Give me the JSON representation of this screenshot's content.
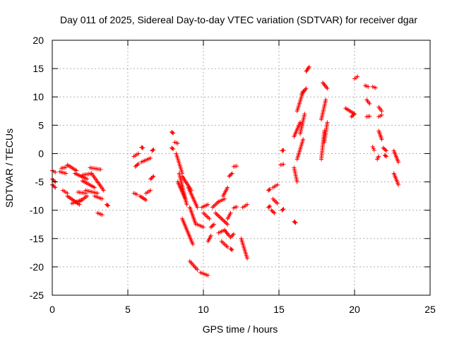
{
  "chart_data": {
    "type": "scatter",
    "title": "Day 011 of 2025, Sidereal Day-to-day VTEC variation (SDTVAR) for receiver dgar",
    "xlabel": "GPS time / hours",
    "ylabel": "SDTVAR / TECUs",
    "xlim": [
      0,
      25
    ],
    "ylim": [
      -25,
      20
    ],
    "xticks": [
      0,
      5,
      10,
      15,
      20,
      25
    ],
    "yticks": [
      -25,
      -20,
      -15,
      -10,
      -5,
      0,
      5,
      10,
      15,
      20
    ],
    "grid": true,
    "marker": "+",
    "color": "#ff0000",
    "segments": [
      {
        "x": [
          0.0,
          0.2
        ],
        "y": [
          -3.0,
          -3.3
        ]
      },
      {
        "x": [
          0.0,
          0.2
        ],
        "y": [
          -4.5,
          -5.0
        ]
      },
      {
        "x": [
          0.0,
          0.2
        ],
        "y": [
          -5.5,
          -6.0
        ]
      },
      {
        "x": [
          0.5,
          0.9
        ],
        "y": [
          -3.2,
          -3.5
        ]
      },
      {
        "x": [
          0.7,
          1.0
        ],
        "y": [
          -6.5,
          -7.0
        ]
      },
      {
        "x": [
          0.6,
          0.9
        ],
        "y": [
          -2.6,
          -2.4
        ]
      },
      {
        "x": [
          1.0,
          1.6
        ],
        "y": [
          -2.0,
          -3.0
        ]
      },
      {
        "x": [
          1.0,
          1.8
        ],
        "y": [
          -7.5,
          -9.0
        ]
      },
      {
        "x": [
          1.3,
          1.9
        ],
        "y": [
          -8.8,
          -8.2
        ]
      },
      {
        "x": [
          1.5,
          2.3
        ],
        "y": [
          -3.5,
          -4.5
        ]
      },
      {
        "x": [
          1.7,
          2.2
        ],
        "y": [
          -6.8,
          -7.0
        ]
      },
      {
        "x": [
          1.8,
          2.3
        ],
        "y": [
          -8.5,
          -7.5
        ]
      },
      {
        "x": [
          2.0,
          2.6
        ],
        "y": [
          -3.8,
          -3.5
        ]
      },
      {
        "x": [
          2.0,
          2.8
        ],
        "y": [
          -4.8,
          -6.0
        ]
      },
      {
        "x": [
          2.2,
          3.0
        ],
        "y": [
          -6.5,
          -7.0
        ]
      },
      {
        "x": [
          2.5,
          3.2
        ],
        "y": [
          -2.5,
          -2.8
        ]
      },
      {
        "x": [
          2.6,
          3.4
        ],
        "y": [
          -3.5,
          -6.5
        ]
      },
      {
        "x": [
          2.8,
          3.3
        ],
        "y": [
          -7.5,
          -8.0
        ]
      },
      {
        "x": [
          3.0,
          3.3
        ],
        "y": [
          -10.5,
          -10.8
        ]
      },
      {
        "x": [
          3.6,
          3.7
        ],
        "y": [
          -9.0,
          -9.2
        ]
      },
      {
        "x": [
          5.4,
          5.7
        ],
        "y": [
          -0.5,
          0.0
        ]
      },
      {
        "x": [
          5.4,
          5.6
        ],
        "y": [
          -7.0,
          -7.2
        ]
      },
      {
        "x": [
          5.5,
          5.7
        ],
        "y": [
          -2.3,
          -1.8
        ]
      },
      {
        "x": [
          5.8,
          6.2
        ],
        "y": [
          -7.5,
          -8.2
        ]
      },
      {
        "x": [
          5.9,
          6.5
        ],
        "y": [
          -1.5,
          -0.8
        ]
      },
      {
        "x": [
          5.9,
          6.0
        ],
        "y": [
          1.1,
          1.0
        ]
      },
      {
        "x": [
          6.2,
          6.5
        ],
        "y": [
          -7.0,
          -6.5
        ]
      },
      {
        "x": [
          6.5,
          6.7
        ],
        "y": [
          -4.5,
          -4.0
        ]
      },
      {
        "x": [
          6.6,
          6.7
        ],
        "y": [
          0.5,
          0.7
        ]
      },
      {
        "x": [
          7.9,
          8.0
        ],
        "y": [
          3.8,
          3.6
        ]
      },
      {
        "x": [
          7.9,
          8.0
        ],
        "y": [
          1.0,
          0.8
        ]
      },
      {
        "x": [
          8.1,
          8.3
        ],
        "y": [
          2.0,
          1.8
        ]
      },
      {
        "x": [
          8.2,
          8.6
        ],
        "y": [
          0.0,
          -3.5
        ]
      },
      {
        "x": [
          8.3,
          8.8
        ],
        "y": [
          -5.0,
          -8.0
        ]
      },
      {
        "x": [
          8.4,
          8.9
        ],
        "y": [
          -3.5,
          -9.0
        ]
      },
      {
        "x": [
          8.6,
          9.2
        ],
        "y": [
          -4.0,
          -6.5
        ]
      },
      {
        "x": [
          8.6,
          9.3
        ],
        "y": [
          -11.5,
          -16.0
        ]
      },
      {
        "x": [
          9.0,
          9.6
        ],
        "y": [
          -6.0,
          -9.5
        ]
      },
      {
        "x": [
          9.1,
          9.5
        ],
        "y": [
          -9.5,
          -12.5
        ]
      },
      {
        "x": [
          9.1,
          9.6
        ],
        "y": [
          -19.0,
          -20.5
        ]
      },
      {
        "x": [
          9.6,
          10.0
        ],
        "y": [
          -12.5,
          -13.0
        ]
      },
      {
        "x": [
          9.8,
          10.3
        ],
        "y": [
          -21.0,
          -21.5
        ]
      },
      {
        "x": [
          9.9,
          10.3
        ],
        "y": [
          -9.5,
          -9.0
        ]
      },
      {
        "x": [
          10.0,
          10.4
        ],
        "y": [
          -10.5,
          -11.5
        ]
      },
      {
        "x": [
          10.3,
          10.5
        ],
        "y": [
          -15.5,
          -14.5
        ]
      },
      {
        "x": [
          10.5,
          10.7
        ],
        "y": [
          -13.0,
          -12.5
        ]
      },
      {
        "x": [
          10.6,
          11.0
        ],
        "y": [
          -9.5,
          -8.5
        ]
      },
      {
        "x": [
          10.8,
          11.6
        ],
        "y": [
          -10.5,
          -12.5
        ]
      },
      {
        "x": [
          11.0,
          11.4
        ],
        "y": [
          -8.5,
          -8.0
        ]
      },
      {
        "x": [
          11.0,
          11.4
        ],
        "y": [
          -14.0,
          -13.5
        ]
      },
      {
        "x": [
          11.2,
          11.6
        ],
        "y": [
          -15.5,
          -16.5
        ]
      },
      {
        "x": [
          11.3,
          11.6
        ],
        "y": [
          -7.5,
          -6.0
        ]
      },
      {
        "x": [
          11.4,
          11.7
        ],
        "y": [
          -13.5,
          -14.5
        ]
      },
      {
        "x": [
          11.6,
          11.8
        ],
        "y": [
          -11.5,
          -10.5
        ]
      },
      {
        "x": [
          11.7,
          11.9
        ],
        "y": [
          -4.0,
          -3.5
        ]
      },
      {
        "x": [
          11.8,
          11.9
        ],
        "y": [
          -16.8,
          -17.0
        ]
      },
      {
        "x": [
          11.8,
          12.0
        ],
        "y": [
          -14.8,
          -14.2
        ]
      },
      {
        "x": [
          12.0,
          12.2
        ],
        "y": [
          -9.6,
          -9.4
        ]
      },
      {
        "x": [
          12.0,
          12.2
        ],
        "y": [
          -2.3,
          -2.2
        ]
      },
      {
        "x": [
          12.5,
          12.9
        ],
        "y": [
          -15.0,
          -18.5
        ]
      },
      {
        "x": [
          12.6,
          12.9
        ],
        "y": [
          -9.5,
          -9.0
        ]
      },
      {
        "x": [
          14.3,
          14.4
        ],
        "y": [
          -6.5,
          -6.3
        ]
      },
      {
        "x": [
          14.3,
          14.4
        ],
        "y": [
          -9.5,
          -9.3
        ]
      },
      {
        "x": [
          14.5,
          14.7
        ],
        "y": [
          -10.0,
          -10.5
        ]
      },
      {
        "x": [
          14.6,
          14.9
        ],
        "y": [
          -6.0,
          -5.5
        ]
      },
      {
        "x": [
          14.6,
          14.9
        ],
        "y": [
          -8.0,
          -8.8
        ]
      },
      {
        "x": [
          15.1,
          15.3
        ],
        "y": [
          -2.0,
          -1.9
        ]
      },
      {
        "x": [
          15.2,
          15.3
        ],
        "y": [
          0.5,
          0.6
        ]
      },
      {
        "x": [
          15.2,
          15.3
        ],
        "y": [
          -10.0,
          -9.8
        ]
      },
      {
        "x": [
          16.0,
          16.1
        ],
        "y": [
          -12.0,
          -12.2
        ]
      },
      {
        "x": [
          16.0,
          16.2
        ],
        "y": [
          -2.5,
          -5.0
        ]
      },
      {
        "x": [
          16.0,
          16.4
        ],
        "y": [
          3.0,
          5.5
        ]
      },
      {
        "x": [
          16.2,
          16.6
        ],
        "y": [
          -1.0,
          2.5
        ]
      },
      {
        "x": [
          16.2,
          16.6
        ],
        "y": [
          7.5,
          11.0
        ]
      },
      {
        "x": [
          16.4,
          16.7
        ],
        "y": [
          3.5,
          7.0
        ]
      },
      {
        "x": [
          16.5,
          16.8
        ],
        "y": [
          10.5,
          11.5
        ]
      },
      {
        "x": [
          16.8,
          17.0
        ],
        "y": [
          14.5,
          15.3
        ]
      },
      {
        "x": [
          17.8,
          18.0
        ],
        "y": [
          -1.0,
          4.0
        ]
      },
      {
        "x": [
          17.8,
          18.1
        ],
        "y": [
          6.0,
          9.5
        ]
      },
      {
        "x": [
          17.9,
          18.2
        ],
        "y": [
          12.5,
          11.5
        ]
      },
      {
        "x": [
          18.0,
          18.2
        ],
        "y": [
          2.0,
          5.5
        ]
      },
      {
        "x": [
          19.4,
          20.0
        ],
        "y": [
          8.0,
          7.0
        ]
      },
      {
        "x": [
          19.8,
          20.0
        ],
        "y": [
          6.5,
          7.0
        ]
      },
      {
        "x": [
          20.0,
          20.2
        ],
        "y": [
          13.2,
          13.6
        ]
      },
      {
        "x": [
          20.7,
          20.9
        ],
        "y": [
          12.0,
          11.8
        ]
      },
      {
        "x": [
          20.8,
          21.0
        ],
        "y": [
          9.5,
          8.8
        ]
      },
      {
        "x": [
          20.8,
          21.0
        ],
        "y": [
          6.5,
          6.6
        ]
      },
      {
        "x": [
          21.2,
          21.4
        ],
        "y": [
          11.8,
          11.6
        ]
      },
      {
        "x": [
          21.2,
          21.3
        ],
        "y": [
          1.2,
          0.6
        ]
      },
      {
        "x": [
          21.5,
          21.6
        ],
        "y": [
          -1.0,
          -0.5
        ]
      },
      {
        "x": [
          21.6,
          21.8
        ],
        "y": [
          8.2,
          7.5
        ]
      },
      {
        "x": [
          21.6,
          21.8
        ],
        "y": [
          6.5,
          6.8
        ]
      },
      {
        "x": [
          21.6,
          21.8
        ],
        "y": [
          4.0,
          2.5
        ]
      },
      {
        "x": [
          21.9,
          22.1
        ],
        "y": [
          1.0,
          0.5
        ]
      },
      {
        "x": [
          22.0,
          22.1
        ],
        "y": [
          -0.3,
          -0.5
        ]
      },
      {
        "x": [
          22.6,
          22.9
        ],
        "y": [
          0.5,
          -1.5
        ]
      },
      {
        "x": [
          22.6,
          22.9
        ],
        "y": [
          -3.5,
          -5.5
        ]
      }
    ]
  }
}
